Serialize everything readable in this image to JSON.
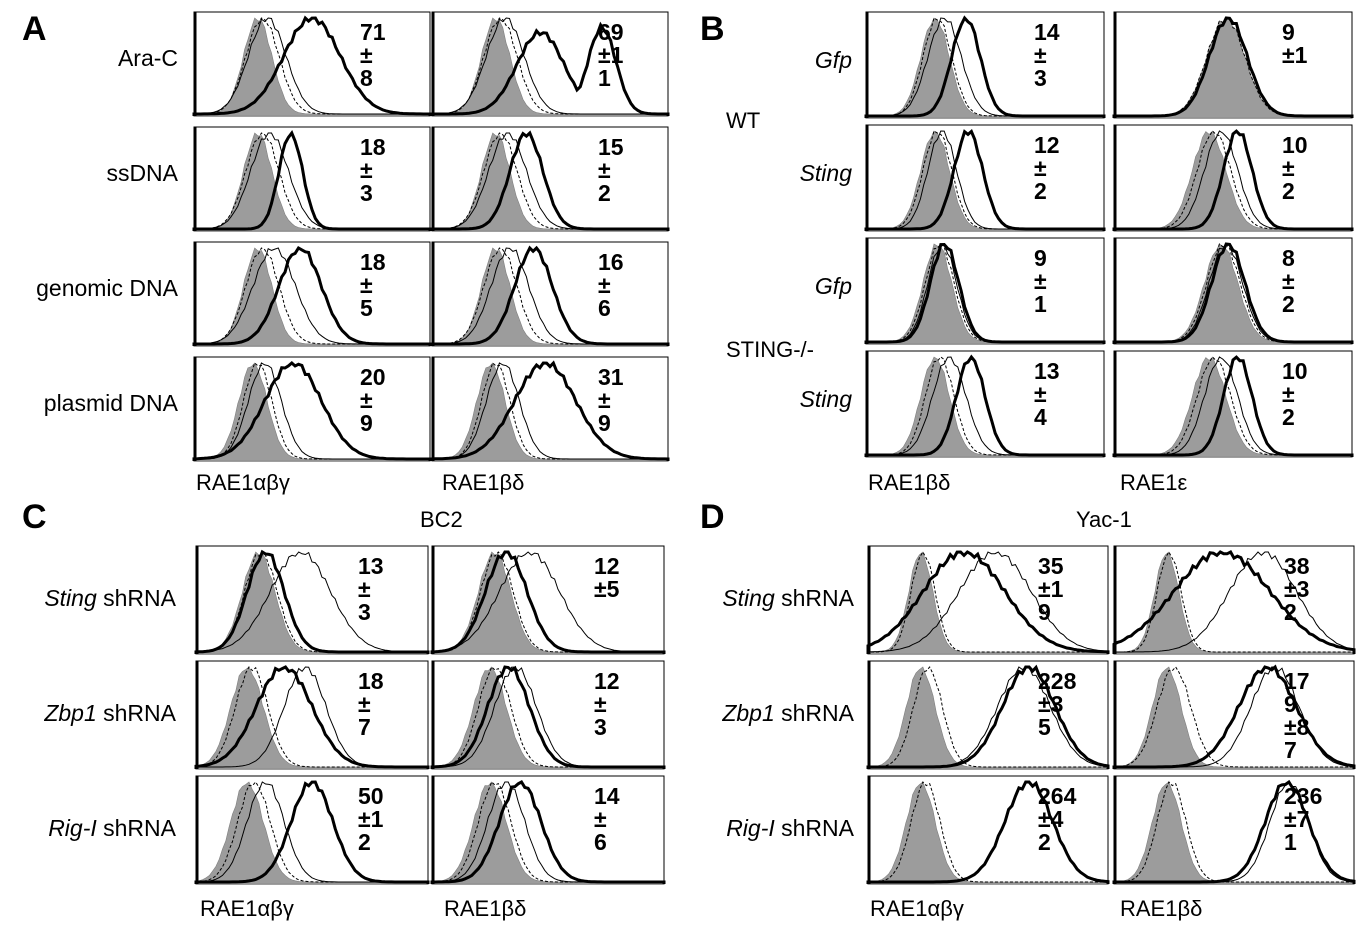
{
  "figure": {
    "panels": {
      "A": {
        "label": "A",
        "rows": [
          "Ara-C",
          "ssDNA",
          "genomic DNA",
          "plasmid DNA"
        ],
        "cols": [
          "RAE1αβγ",
          "RAE1βδ"
        ],
        "stats": [
          [
            [
              "71",
              "±",
              "8"
            ],
            [
              "69",
              "±1",
              "1"
            ]
          ],
          [
            [
              "18",
              "±",
              "3"
            ],
            [
              "15",
              "±",
              "2"
            ]
          ],
          [
            [
              "18",
              "±",
              "5"
            ],
            [
              "16",
              "±",
              "6"
            ]
          ],
          [
            [
              "20",
              "±",
              "9"
            ],
            [
              "31",
              "±",
              "9"
            ]
          ]
        ]
      },
      "B": {
        "label": "B",
        "rows": [
          "Gfp",
          "Sting",
          "Gfp",
          "Sting"
        ],
        "groups": [
          "WT",
          "STING-/-"
        ],
        "cols": [
          "RAE1βδ",
          "RAE1ε"
        ],
        "stats": [
          [
            [
              "14",
              "±",
              "3"
            ],
            [
              "9",
              "±1",
              ""
            ]
          ],
          [
            [
              "12",
              "±",
              "2"
            ],
            [
              "10",
              "±",
              "2"
            ]
          ],
          [
            [
              "9",
              "±",
              "1"
            ],
            [
              "8",
              "±",
              "2"
            ]
          ],
          [
            [
              "13",
              "±",
              "4"
            ],
            [
              "10",
              "±",
              "2"
            ]
          ]
        ]
      },
      "C": {
        "label": "C",
        "title": "BC2",
        "rows": [
          {
            "gene": "Sting",
            "suffix": " shRNA"
          },
          {
            "gene": "Zbp1",
            "suffix": " shRNA"
          },
          {
            "gene": "Rig-I",
            "suffix": " shRNA"
          }
        ],
        "cols": [
          "RAE1αβγ",
          "RAE1βδ"
        ],
        "stats": [
          [
            [
              "13",
              "±",
              "3"
            ],
            [
              "12",
              "±5",
              ""
            ]
          ],
          [
            [
              "18",
              "±",
              "7"
            ],
            [
              "12",
              "±",
              "3"
            ]
          ],
          [
            [
              "50",
              "±1",
              "2"
            ],
            [
              "14",
              "±",
              "6"
            ]
          ]
        ]
      },
      "D": {
        "label": "D",
        "title": "Yac-1",
        "rows": [
          {
            "gene": "Sting",
            "suffix": " shRNA"
          },
          {
            "gene": "Zbp1",
            "suffix": " shRNA"
          },
          {
            "gene": "Rig-I",
            "suffix": " shRNA"
          }
        ],
        "cols": [
          "RAE1αβγ",
          "RAE1βδ"
        ],
        "stats": [
          [
            [
              "35",
              "±1",
              "9"
            ],
            [
              "38",
              "±3",
              "2"
            ]
          ],
          [
            [
              "228",
              "±3",
              "5"
            ],
            [
              "17",
              "9",
              "±8",
              "7"
            ]
          ],
          [
            [
              "264",
              "±4",
              "2"
            ],
            [
              "236",
              "±7",
              "1"
            ]
          ]
        ]
      }
    }
  },
  "chart_data": {
    "type": "histogram-overlay",
    "colors": {
      "shaded": "#9c9c9c",
      "line": "#000000"
    },
    "panels": {
      "A": [
        [
          {
            "shade": [
              0.27,
              0.06
            ],
            "thin": [
              0.31,
              0.08
            ],
            "dash": [
              0.29,
              0.07
            ],
            "thick": [
              0.5,
              0.12
            ]
          },
          {
            "shade": [
              0.27,
              0.06
            ],
            "thin": [
              0.31,
              0.08
            ],
            "dash": [
              0.29,
              0.07
            ],
            "thick": [
              0.46,
              0.1
            ],
            "thick2": [
              0.72,
              0.06
            ]
          }
        ],
        [
          {
            "shade": [
              0.27,
              0.06
            ],
            "thin": [
              0.32,
              0.08
            ],
            "dash": [
              0.29,
              0.07
            ],
            "thick": [
              0.41,
              0.05
            ]
          },
          {
            "shade": [
              0.27,
              0.06
            ],
            "thin": [
              0.32,
              0.08
            ],
            "dash": [
              0.29,
              0.07
            ],
            "thick": [
              0.4,
              0.07
            ]
          }
        ],
        [
          {
            "shade": [
              0.27,
              0.06
            ],
            "thin": [
              0.34,
              0.09
            ],
            "dash": [
              0.29,
              0.07
            ],
            "thick": [
              0.45,
              0.09
            ]
          },
          {
            "shade": [
              0.27,
              0.06
            ],
            "thin": [
              0.33,
              0.08
            ],
            "dash": [
              0.29,
              0.07
            ],
            "thick": [
              0.43,
              0.08
            ]
          }
        ],
        [
          {
            "shade": [
              0.25,
              0.06
            ],
            "thin": [
              0.3,
              0.07
            ],
            "dash": [
              0.27,
              0.06
            ],
            "thick": [
              0.42,
              0.12
            ]
          },
          {
            "shade": [
              0.25,
              0.06
            ],
            "thin": [
              0.3,
              0.07
            ],
            "dash": [
              0.27,
              0.06
            ],
            "thick": [
              0.48,
              0.13
            ]
          }
        ]
      ],
      "B": [
        [
          {
            "shade": [
              0.29,
              0.06
            ],
            "thin": [
              0.33,
              0.07
            ],
            "dash": [
              0.3,
              0.06
            ],
            "thick": [
              0.42,
              0.06
            ]
          },
          {
            "shade": [
              0.47,
              0.08
            ],
            "thin": [
              0.48,
              0.08
            ],
            "dash": [
              0.47,
              0.08
            ],
            "thick": [
              0.48,
              0.08
            ]
          }
        ],
        [
          {
            "shade": [
              0.29,
              0.06
            ],
            "thin": [
              0.32,
              0.06
            ],
            "dash": [
              0.3,
              0.06
            ],
            "thick": [
              0.43,
              0.06
            ]
          },
          {
            "shade": [
              0.4,
              0.07
            ],
            "thin": [
              0.45,
              0.07
            ],
            "dash": [
              0.42,
              0.07
            ],
            "thick": [
              0.52,
              0.06
            ]
          }
        ],
        [
          {
            "shade": [
              0.3,
              0.06
            ],
            "thin": [
              0.32,
              0.06
            ],
            "dash": [
              0.31,
              0.06
            ],
            "thick": [
              0.33,
              0.06
            ]
          },
          {
            "shade": [
              0.45,
              0.07
            ],
            "thin": [
              0.47,
              0.07
            ],
            "dash": [
              0.46,
              0.07
            ],
            "thick": [
              0.48,
              0.07
            ]
          }
        ],
        [
          {
            "shade": [
              0.29,
              0.06
            ],
            "thin": [
              0.35,
              0.07
            ],
            "dash": [
              0.31,
              0.06
            ],
            "thick": [
              0.44,
              0.06
            ]
          },
          {
            "shade": [
              0.4,
              0.07
            ],
            "thin": [
              0.45,
              0.07
            ],
            "dash": [
              0.42,
              0.07
            ],
            "thick": [
              0.52,
              0.06
            ]
          }
        ]
      ],
      "C": [
        [
          {
            "shade": [
              0.27,
              0.07
            ],
            "thin": [
              0.45,
              0.13
            ],
            "dash": [
              0.28,
              0.07
            ],
            "thick": [
              0.3,
              0.08
            ]
          },
          {
            "shade": [
              0.27,
              0.07
            ],
            "thin": [
              0.42,
              0.13
            ],
            "dash": [
              0.28,
              0.07
            ],
            "thick": [
              0.32,
              0.09
            ]
          }
        ],
        [
          {
            "shade": [
              0.22,
              0.07
            ],
            "thin": [
              0.47,
              0.09
            ],
            "dash": [
              0.24,
              0.07
            ],
            "thick": [
              0.38,
              0.12
            ]
          },
          {
            "shade": [
              0.25,
              0.07
            ],
            "thin": [
              0.36,
              0.09
            ],
            "dash": [
              0.27,
              0.07
            ],
            "thick": [
              0.33,
              0.09
            ]
          }
        ],
        [
          {
            "shade": [
              0.22,
              0.07
            ],
            "thin": [
              0.3,
              0.08
            ],
            "dash": [
              0.25,
              0.07
            ],
            "thick": [
              0.5,
              0.09
            ]
          },
          {
            "shade": [
              0.25,
              0.07
            ],
            "thin": [
              0.32,
              0.08
            ],
            "dash": [
              0.27,
              0.07
            ],
            "thick": [
              0.38,
              0.09
            ]
          }
        ]
      ],
      "D": [
        [
          {
            "shade": [
              0.22,
              0.05
            ],
            "thin": [
              0.53,
              0.15
            ],
            "dash": [
              0.23,
              0.05
            ],
            "thick": [
              0.4,
              0.17
            ]
          },
          {
            "shade": [
              0.22,
              0.05
            ],
            "thin": [
              0.62,
              0.14
            ],
            "dash": [
              0.23,
              0.05
            ],
            "thick": [
              0.45,
              0.2
            ]
          }
        ],
        [
          {
            "shade": [
              0.22,
              0.06
            ],
            "thin": [
              0.65,
              0.11
            ],
            "dash": [
              0.25,
              0.06
            ],
            "thick": [
              0.67,
              0.11
            ]
          },
          {
            "shade": [
              0.22,
              0.06
            ],
            "thin": [
              0.67,
              0.1
            ],
            "dash": [
              0.25,
              0.07
            ],
            "thick": [
              0.64,
              0.12
            ]
          }
        ],
        [
          {
            "shade": [
              0.22,
              0.06
            ],
            "thin": [
              0.67,
              0.1
            ],
            "dash": [
              0.24,
              0.06
            ],
            "thick": [
              0.67,
              0.1
            ]
          },
          {
            "shade": [
              0.22,
              0.06
            ],
            "thin": [
              0.73,
              0.08
            ],
            "dash": [
              0.24,
              0.06
            ],
            "thick": [
              0.72,
              0.09
            ]
          }
        ]
      ]
    }
  }
}
